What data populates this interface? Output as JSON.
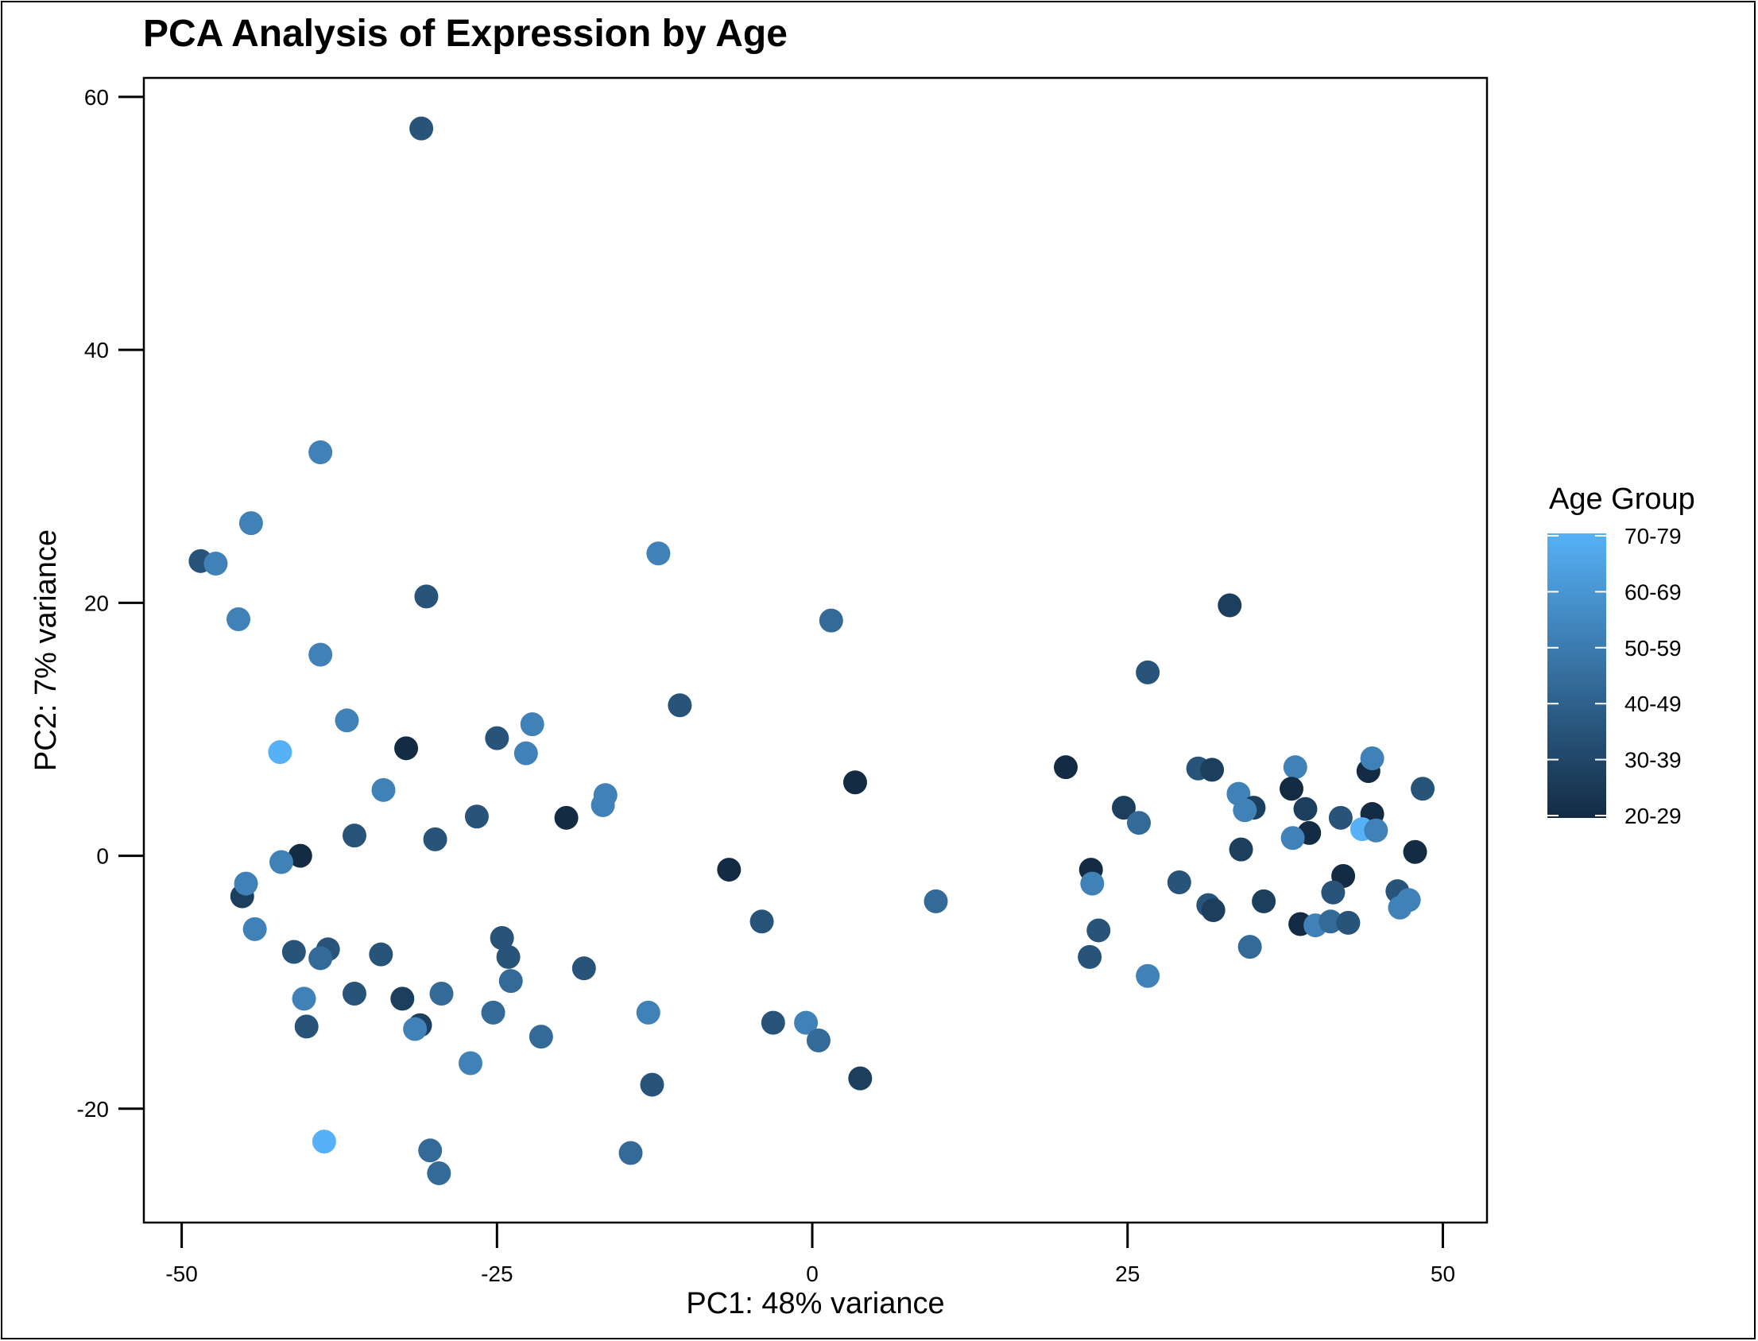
{
  "chart_data": {
    "type": "scatter",
    "title": "PCA Analysis of Expression by Age",
    "xlabel": "PC1: 48% variance",
    "ylabel": "PC2: 7% variance",
    "xlim": [
      -53,
      53.5
    ],
    "ylim": [
      -29,
      61.5
    ],
    "x_ticks": [
      -50,
      -25,
      0,
      25,
      50
    ],
    "x_tick_labels": [
      "-50",
      "-25",
      "0",
      "25",
      "50"
    ],
    "y_ticks": [
      -20,
      0,
      20,
      40,
      60
    ],
    "y_tick_labels": [
      "-20",
      "0",
      "20",
      "40",
      "60"
    ],
    "grid": false,
    "legend": {
      "title": "Age Group",
      "placement": "right",
      "labels": [
        "70-79",
        "60-69",
        "50-59",
        "40-49",
        "30-39",
        "20-29"
      ],
      "color_low": "#132B43",
      "color_high": "#56B1F7"
    },
    "color_scale": {
      "20-29": "#132B43",
      "30-39": "#1D3F5E",
      "40-49": "#28547A",
      "50-59": "#346A98",
      "60-69": "#4081B7",
      "70-79": "#56B1F7"
    },
    "points": [
      {
        "x": -31,
        "y": 57.5,
        "group": "40-49"
      },
      {
        "x": -39,
        "y": 31.9,
        "group": "60-69"
      },
      {
        "x": -44.5,
        "y": 26.3,
        "group": "60-69"
      },
      {
        "x": -48.5,
        "y": 23.3,
        "group": "40-49"
      },
      {
        "x": -47.3,
        "y": 23.1,
        "group": "60-69"
      },
      {
        "x": -45.5,
        "y": 18.7,
        "group": "60-69"
      },
      {
        "x": -30.6,
        "y": 20.5,
        "group": "40-49"
      },
      {
        "x": -39,
        "y": 15.9,
        "group": "60-69"
      },
      {
        "x": -12.2,
        "y": 23.9,
        "group": "60-69"
      },
      {
        "x": 1.5,
        "y": 18.6,
        "group": "50-59"
      },
      {
        "x": -36.9,
        "y": 10.7,
        "group": "60-69"
      },
      {
        "x": -42.2,
        "y": 8.2,
        "group": "70-79"
      },
      {
        "x": -32.2,
        "y": 8.5,
        "group": "20-29"
      },
      {
        "x": -25,
        "y": 9.3,
        "group": "40-49"
      },
      {
        "x": -22.2,
        "y": 10.4,
        "group": "60-69"
      },
      {
        "x": -22.7,
        "y": 8.1,
        "group": "60-69"
      },
      {
        "x": -10.5,
        "y": 11.9,
        "group": "40-49"
      },
      {
        "x": -34,
        "y": 5.2,
        "group": "60-69"
      },
      {
        "x": -16.4,
        "y": 4.8,
        "group": "60-69"
      },
      {
        "x": -16.6,
        "y": 4,
        "group": "60-69"
      },
      {
        "x": -26.6,
        "y": 3.1,
        "group": "40-49"
      },
      {
        "x": -19.5,
        "y": 3,
        "group": "20-29"
      },
      {
        "x": -36.3,
        "y": 1.6,
        "group": "40-49"
      },
      {
        "x": -29.9,
        "y": 1.3,
        "group": "40-49"
      },
      {
        "x": 3.4,
        "y": 5.8,
        "group": "20-29"
      },
      {
        "x": -40.6,
        "y": 0,
        "group": "20-29"
      },
      {
        "x": -42.1,
        "y": -0.5,
        "group": "60-69"
      },
      {
        "x": -45.2,
        "y": -3.2,
        "group": "30-39"
      },
      {
        "x": -44.9,
        "y": -2.2,
        "group": "60-69"
      },
      {
        "x": -44.2,
        "y": -5.8,
        "group": "60-69"
      },
      {
        "x": -6.6,
        "y": -1.1,
        "group": "20-29"
      },
      {
        "x": -4,
        "y": -5.2,
        "group": "40-49"
      },
      {
        "x": 9.8,
        "y": -3.6,
        "group": "50-59"
      },
      {
        "x": -41.1,
        "y": -7.6,
        "group": "40-49"
      },
      {
        "x": -38.4,
        "y": -7.4,
        "group": "40-49"
      },
      {
        "x": -39,
        "y": -8.1,
        "group": "50-59"
      },
      {
        "x": -34.2,
        "y": -7.8,
        "group": "40-49"
      },
      {
        "x": -24.6,
        "y": -6.5,
        "group": "40-49"
      },
      {
        "x": -24.1,
        "y": -8,
        "group": "40-49"
      },
      {
        "x": -23.9,
        "y": -9.9,
        "group": "50-59"
      },
      {
        "x": -18.1,
        "y": -8.9,
        "group": "40-49"
      },
      {
        "x": -40.3,
        "y": -11.3,
        "group": "60-69"
      },
      {
        "x": -36.3,
        "y": -10.9,
        "group": "40-49"
      },
      {
        "x": -32.5,
        "y": -11.3,
        "group": "30-39"
      },
      {
        "x": -29.4,
        "y": -10.9,
        "group": "50-59"
      },
      {
        "x": -25.3,
        "y": -12.4,
        "group": "50-59"
      },
      {
        "x": -40.1,
        "y": -13.5,
        "group": "40-49"
      },
      {
        "x": -31.1,
        "y": -13.4,
        "group": "30-39"
      },
      {
        "x": -31.5,
        "y": -13.7,
        "group": "60-69"
      },
      {
        "x": -21.5,
        "y": -14.3,
        "group": "50-59"
      },
      {
        "x": -13,
        "y": -12.4,
        "group": "60-69"
      },
      {
        "x": -27.1,
        "y": -16.4,
        "group": "60-69"
      },
      {
        "x": -12.7,
        "y": -18.1,
        "group": "40-49"
      },
      {
        "x": -3.1,
        "y": -13.2,
        "group": "40-49"
      },
      {
        "x": -0.5,
        "y": -13.2,
        "group": "60-69"
      },
      {
        "x": 0.5,
        "y": -14.6,
        "group": "50-59"
      },
      {
        "x": 3.8,
        "y": -17.6,
        "group": "30-39"
      },
      {
        "x": -38.7,
        "y": -22.6,
        "group": "70-79"
      },
      {
        "x": -30.3,
        "y": -23.3,
        "group": "50-59"
      },
      {
        "x": -29.6,
        "y": -25.1,
        "group": "50-59"
      },
      {
        "x": -14.4,
        "y": -23.5,
        "group": "50-59"
      },
      {
        "x": 20.1,
        "y": 7,
        "group": "20-29"
      },
      {
        "x": 33.1,
        "y": 19.8,
        "group": "30-39"
      },
      {
        "x": 26.6,
        "y": 14.5,
        "group": "40-49"
      },
      {
        "x": 30.6,
        "y": 6.9,
        "group": "40-49"
      },
      {
        "x": 31.7,
        "y": 6.8,
        "group": "30-39"
      },
      {
        "x": 24.7,
        "y": 3.8,
        "group": "30-39"
      },
      {
        "x": 25.9,
        "y": 2.6,
        "group": "50-59"
      },
      {
        "x": 33.8,
        "y": 4.9,
        "group": "60-69"
      },
      {
        "x": 35,
        "y": 3.8,
        "group": "30-39"
      },
      {
        "x": 34.3,
        "y": 3.6,
        "group": "60-69"
      },
      {
        "x": 38.3,
        "y": 7,
        "group": "60-69"
      },
      {
        "x": 38,
        "y": 5.3,
        "group": "20-29"
      },
      {
        "x": 39.1,
        "y": 3.7,
        "group": "30-39"
      },
      {
        "x": 39.4,
        "y": 1.8,
        "group": "20-29"
      },
      {
        "x": 38.1,
        "y": 1.4,
        "group": "60-69"
      },
      {
        "x": 34,
        "y": 0.5,
        "group": "30-39"
      },
      {
        "x": 41.9,
        "y": 3,
        "group": "40-49"
      },
      {
        "x": 44.1,
        "y": 6.7,
        "group": "20-29"
      },
      {
        "x": 44.4,
        "y": 7.7,
        "group": "60-69"
      },
      {
        "x": 44.4,
        "y": 3.3,
        "group": "20-29"
      },
      {
        "x": 43.6,
        "y": 2.1,
        "group": "70-79"
      },
      {
        "x": 44.7,
        "y": 2,
        "group": "60-69"
      },
      {
        "x": 48.4,
        "y": 5.3,
        "group": "40-49"
      },
      {
        "x": 47.8,
        "y": 0.3,
        "group": "20-29"
      },
      {
        "x": 22.1,
        "y": -1.1,
        "group": "20-29"
      },
      {
        "x": 22.2,
        "y": -2.2,
        "group": "60-69"
      },
      {
        "x": 29.1,
        "y": -2.1,
        "group": "40-49"
      },
      {
        "x": 31.4,
        "y": -3.9,
        "group": "40-49"
      },
      {
        "x": 31.8,
        "y": -4.3,
        "group": "30-39"
      },
      {
        "x": 35.8,
        "y": -3.6,
        "group": "30-39"
      },
      {
        "x": 42.1,
        "y": -1.6,
        "group": "20-29"
      },
      {
        "x": 41.3,
        "y": -2.9,
        "group": "40-49"
      },
      {
        "x": 46.4,
        "y": -2.8,
        "group": "40-49"
      },
      {
        "x": 47.3,
        "y": -3.5,
        "group": "60-69"
      },
      {
        "x": 46.6,
        "y": -4.1,
        "group": "60-69"
      },
      {
        "x": 38.7,
        "y": -5.4,
        "group": "20-29"
      },
      {
        "x": 39.9,
        "y": -5.5,
        "group": "60-69"
      },
      {
        "x": 41.1,
        "y": -5.2,
        "group": "50-59"
      },
      {
        "x": 42.5,
        "y": -5.3,
        "group": "40-49"
      },
      {
        "x": 34.7,
        "y": -7.2,
        "group": "50-59"
      },
      {
        "x": 22.7,
        "y": -5.9,
        "group": "40-49"
      },
      {
        "x": 22,
        "y": -8,
        "group": "40-49"
      },
      {
        "x": 26.6,
        "y": -9.5,
        "group": "60-69"
      }
    ]
  }
}
